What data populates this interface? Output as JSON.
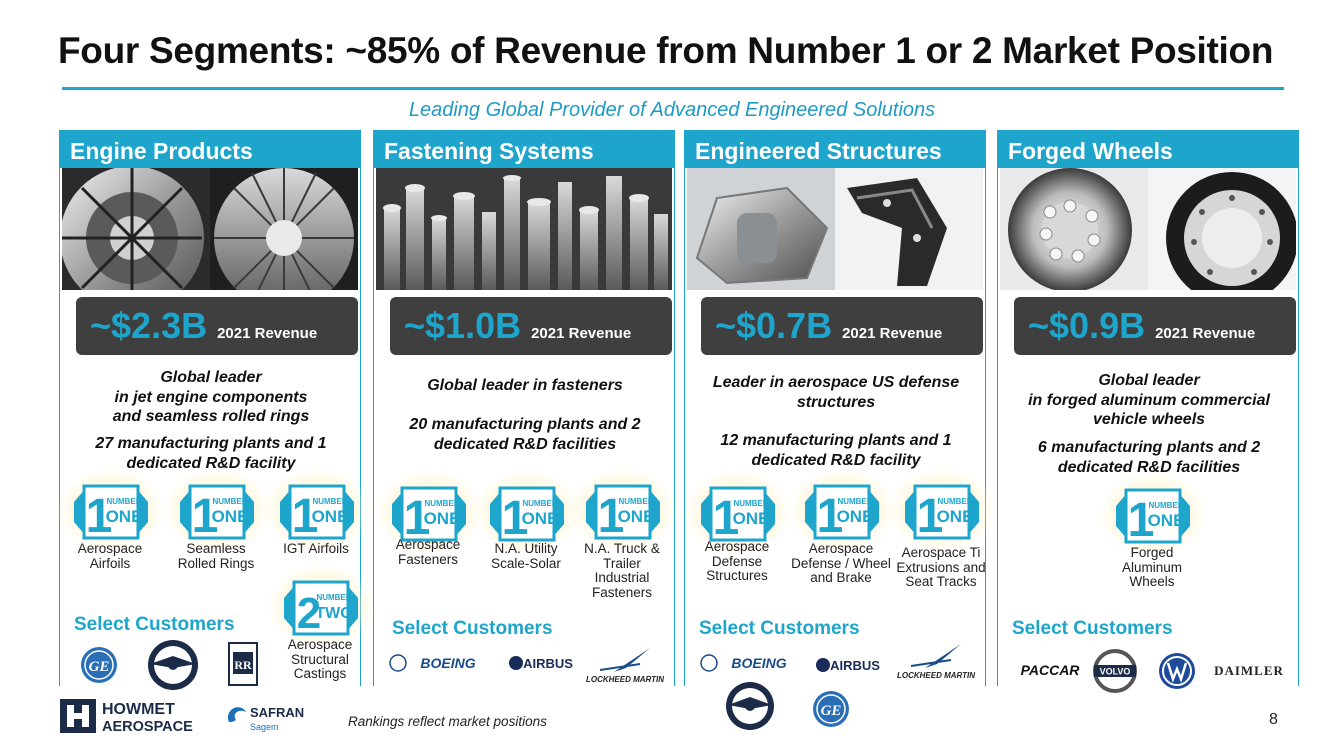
{
  "slide": {
    "title": "Four Segments: ~85% of Revenue from Number 1 or 2 Market Position",
    "subtitle": "Leading Global Provider of Advanced Engineered Solutions",
    "footer_note": "Rankings reflect market positions",
    "page_number": "8",
    "revenue_label": "2021 Revenue",
    "select_customers": "Select Customers"
  },
  "badge_text": {
    "number": "NUMBER",
    "one": "ONE",
    "two": "TWO",
    "digit_one": "1",
    "digit_two": "2"
  },
  "segments": [
    {
      "name": "Engine Products",
      "revenue": "~$2.3B",
      "desc1": [
        "Global leader",
        "in jet engine components",
        "and seamless rolled rings"
      ],
      "desc2": [
        "27 manufacturing plants and 1",
        "dedicated R&D facility"
      ],
      "badges": [
        {
          "rank": "1",
          "label": [
            "Aerospace",
            "Airfoils"
          ]
        },
        {
          "rank": "1",
          "label": [
            "Seamless",
            "Rolled Rings"
          ]
        },
        {
          "rank": "1",
          "label": [
            "IGT Airfoils"
          ]
        },
        {
          "rank": "2",
          "label": [
            "Aerospace",
            "Structural",
            "Castings"
          ]
        }
      ],
      "customers": [
        "GE",
        "Pratt & Whitney",
        "Rolls-Royce"
      ]
    },
    {
      "name": "Fastening Systems",
      "revenue": "~$1.0B",
      "desc1": [
        "Global leader in fasteners"
      ],
      "desc2": [
        "20 manufacturing plants and 2",
        "dedicated R&D facilities"
      ],
      "badges": [
        {
          "rank": "1",
          "label": [
            "Aerospace",
            "Fasteners"
          ]
        },
        {
          "rank": "1",
          "label": [
            "N.A. Utility",
            "Scale-Solar"
          ]
        },
        {
          "rank": "1",
          "label": [
            "N.A. Truck &",
            "Trailer",
            "Industrial",
            "Fasteners"
          ]
        }
      ],
      "customers": [
        "BOEING",
        "AIRBUS",
        "LOCKHEED MARTIN"
      ]
    },
    {
      "name": "Engineered Structures",
      "revenue": "~$0.7B",
      "desc1": [
        "Leader in aerospace US defense",
        "structures"
      ],
      "desc2": [
        "12 manufacturing plants and 1",
        "dedicated R&D facility"
      ],
      "badges": [
        {
          "rank": "1",
          "label": [
            "Aerospace",
            "Defense",
            "Structures"
          ]
        },
        {
          "rank": "1",
          "label": [
            "Aerospace",
            "Defense / Wheel",
            "and Brake"
          ]
        },
        {
          "rank": "1",
          "label": [
            "Aerospace Ti",
            "Extrusions and",
            "Seat Tracks"
          ]
        }
      ],
      "customers": [
        "BOEING",
        "AIRBUS",
        "LOCKHEED MARTIN",
        "Pratt & Whitney",
        "GE"
      ]
    },
    {
      "name": "Forged Wheels",
      "revenue": "~$0.9B",
      "desc1": [
        "Global leader",
        "in forged aluminum commercial",
        "vehicle wheels"
      ],
      "desc2": [
        "6 manufacturing plants and 2",
        "dedicated R&D facilities"
      ],
      "badges": [
        {
          "rank": "1",
          "label": [
            "Forged",
            "Aluminum",
            "Wheels"
          ]
        }
      ],
      "customers": [
        "PACCAR",
        "VOLVO",
        "VW",
        "DAIMLER"
      ]
    }
  ],
  "brand": {
    "howmet_line1": "HOWMET",
    "howmet_line2": "AEROSPACE",
    "safran_line1": "SAFRAN",
    "safran_line2": "Sagem"
  },
  "colors": {
    "accent": "#1ea5cc",
    "revenue_box": "#3f3f3f",
    "title_text": "#111111"
  }
}
